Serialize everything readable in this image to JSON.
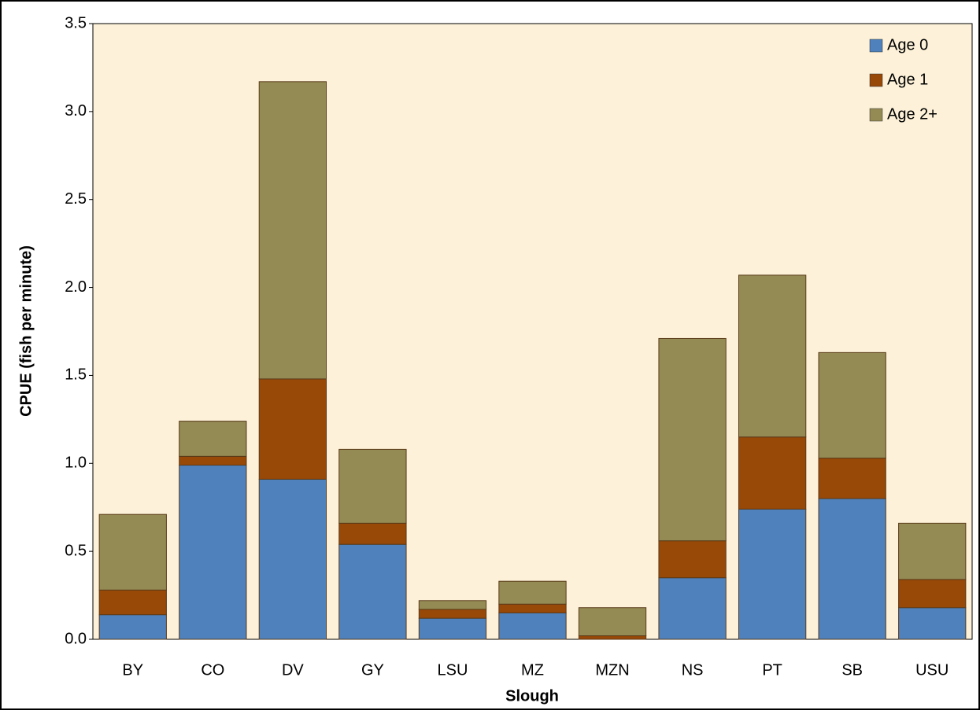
{
  "chart_data": {
    "type": "stacked_bar",
    "x_label": "Slough",
    "y_label": "CPUE (fish per minute)",
    "categories": [
      "BY",
      "CO",
      "DV",
      "GY",
      "LSU",
      "MZ",
      "MZN",
      "NS",
      "PT",
      "SB",
      "USU"
    ],
    "series": [
      {
        "name": "Age 0",
        "color": "#4f81bd",
        "values": [
          0.14,
          0.99,
          0.91,
          0.54,
          0.12,
          0.15,
          0.0,
          0.35,
          0.74,
          0.8,
          0.18
        ]
      },
      {
        "name": "Age 1",
        "color": "#984807",
        "values": [
          0.14,
          0.05,
          0.57,
          0.12,
          0.05,
          0.05,
          0.02,
          0.21,
          0.41,
          0.23,
          0.16
        ]
      },
      {
        "name": "Age 2+",
        "color": "#948a54",
        "values": [
          0.43,
          0.2,
          1.69,
          0.42,
          0.05,
          0.13,
          0.16,
          1.15,
          0.92,
          0.6,
          0.32
        ]
      }
    ],
    "ylim": [
      0,
      3.5
    ],
    "yticks": [
      {
        "value": 0,
        "label": "0.0"
      },
      0.5,
      {
        "value": 1,
        "label": "1.0"
      },
      1.5,
      {
        "value": 2,
        "label": "2.0"
      },
      2.5,
      {
        "value": 3,
        "label": "3.0"
      },
      3.5
    ],
    "legend": "top-right",
    "grid": false,
    "background": "#fdf2d9"
  }
}
